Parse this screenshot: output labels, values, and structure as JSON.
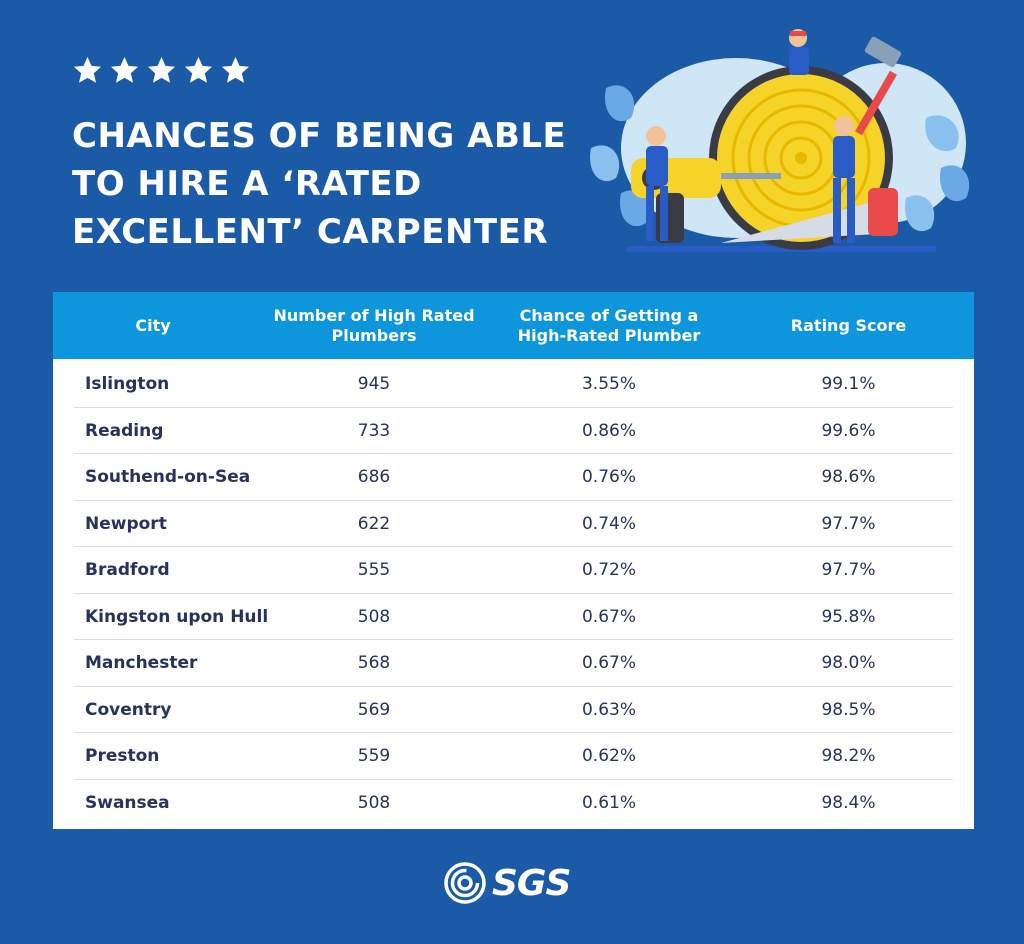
{
  "header": {
    "rating_stars": 5,
    "title": "CHANCES OF BEING ABLE TO HIRE A ‘RATED EXCELLENT’ CARPENTER"
  },
  "table": {
    "columns": [
      "City",
      "Number of High Rated Plumbers",
      "Chance of Getting a High-Rated Plumber",
      "Rating Score"
    ],
    "rows": [
      {
        "city": "Islington",
        "count": "945",
        "chance": "3.55%",
        "score": "99.1%"
      },
      {
        "city": "Reading",
        "count": "733",
        "chance": "0.86%",
        "score": "99.6%"
      },
      {
        "city": "Southend-on-Sea",
        "count": "686",
        "chance": "0.76%",
        "score": "98.6%"
      },
      {
        "city": "Newport",
        "count": "622",
        "chance": "0.74%",
        "score": "97.7%"
      },
      {
        "city": "Bradford",
        "count": "555",
        "chance": "0.72%",
        "score": "97.7%"
      },
      {
        "city": "Kingston upon Hull",
        "count": "508",
        "chance": "0.67%",
        "score": "95.8%"
      },
      {
        "city": "Manchester",
        "count": "568",
        "chance": "0.67%",
        "score": "98.0%"
      },
      {
        "city": "Coventry",
        "count": "569",
        "chance": "0.63%",
        "score": "98.5%"
      },
      {
        "city": "Preston",
        "count": "559",
        "chance": "0.62%",
        "score": "98.2%"
      },
      {
        "city": "Swansea",
        "count": "508",
        "chance": "0.61%",
        "score": "98.4%"
      }
    ]
  },
  "footer": {
    "logo_text": "SGS",
    "logo_icon": "sgs-swirl-icon"
  },
  "colors": {
    "background": "#1b5aa6",
    "header_row": "#0e96dd",
    "row_text": "#27335e",
    "white": "#ffffff"
  },
  "illustration": {
    "icon": "carpenters-with-tools-illustration"
  }
}
